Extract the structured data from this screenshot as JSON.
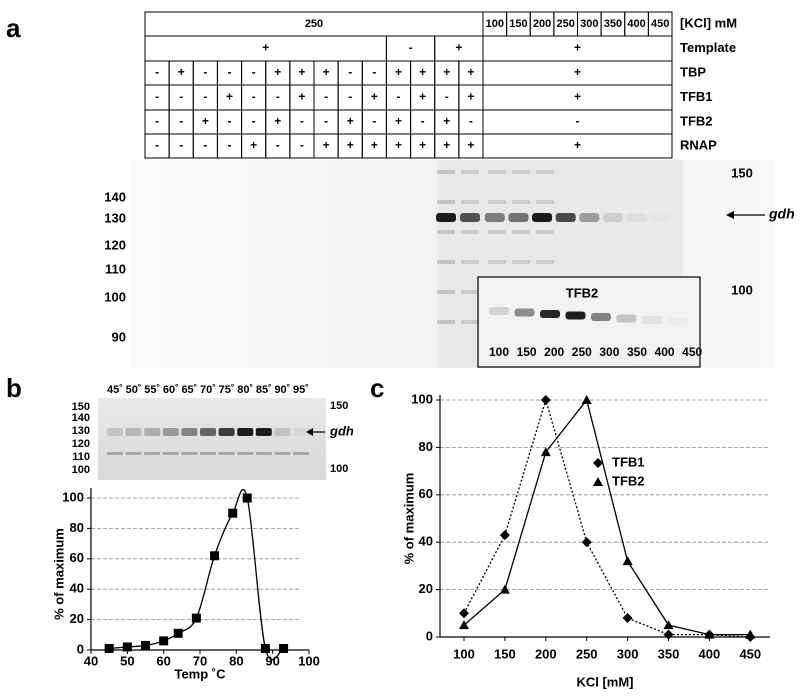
{
  "panel_labels": [
    "a",
    "b",
    "c"
  ],
  "table": {
    "kcl_left": "250",
    "kcl_values": [
      "100",
      "150",
      "200",
      "250",
      "300",
      "350",
      "400",
      "450"
    ],
    "row_labels": [
      "[KCl] mM",
      "Template",
      "TBP",
      "TFB1",
      "TFB2",
      "RNAP"
    ],
    "template": [
      "+",
      "-",
      "+",
      "+"
    ],
    "rows": [
      {
        "left": [
          "-",
          "+",
          "-",
          "-",
          "-",
          "+",
          "+",
          "+",
          "-",
          "-",
          "+",
          "+",
          "+",
          "+"
        ],
        "right": "+"
      },
      {
        "left": [
          "-",
          "-",
          "-",
          "+",
          "-",
          "-",
          "+",
          "-",
          "-",
          "+",
          "-",
          "+",
          "-",
          "+"
        ],
        "right": "+"
      },
      {
        "left": [
          "-",
          "-",
          "+",
          "-",
          "-",
          "+",
          "-",
          "-",
          "+",
          "-",
          "+",
          "-",
          "+",
          "-"
        ],
        "right": "-"
      },
      {
        "left": [
          "-",
          "-",
          "-",
          "-",
          "+",
          "-",
          "-",
          "+",
          "+",
          "+",
          "+",
          "+",
          "+",
          "+"
        ],
        "right": "+"
      }
    ]
  },
  "gel_a": {
    "left_markers": [
      "140",
      "130",
      "120",
      "110",
      "100",
      "90"
    ],
    "right_markers": [
      "150",
      "100"
    ],
    "band_label": "gdh",
    "inset_title": "TFB2",
    "inset_lanes": [
      "100",
      "150",
      "200",
      "250",
      "300",
      "350",
      "400",
      "450"
    ]
  },
  "gel_b": {
    "temperatures": [
      "45˚",
      "50˚",
      "55˚",
      "60˚",
      "65˚",
      "70˚",
      "75˚",
      "80˚",
      "85˚",
      "90˚",
      "95˚"
    ],
    "left_markers": [
      "150",
      "140",
      "130",
      "120",
      "110",
      "100"
    ],
    "right_markers": [
      "150",
      "100"
    ],
    "band_label": "gdh"
  },
  "chart_data": [
    {
      "type": "line",
      "x": [
        45,
        50,
        55,
        60,
        64,
        69,
        74,
        79,
        83,
        88,
        93
      ],
      "series": [
        {
          "color": "#000000",
          "marker": "square",
          "values": [
            1,
            2,
            3,
            6,
            11,
            21,
            62,
            90,
            100,
            1,
            1
          ]
        }
      ],
      "xlim": [
        40,
        100
      ],
      "ylim": [
        0,
        100
      ],
      "xticks": [
        40,
        50,
        60,
        70,
        80,
        90,
        100
      ],
      "yticks": [
        0,
        20,
        40,
        60,
        80,
        100
      ],
      "xlabel": "Temp ˚C",
      "ylabel": "% of maximum",
      "grid": true
    },
    {
      "type": "line",
      "categories": [
        "100",
        "150",
        "200",
        "250",
        "300",
        "350",
        "400",
        "450"
      ],
      "series": [
        {
          "name": "TFB1",
          "color": "#000000",
          "marker": "diamond",
          "dash": "dotted",
          "values": [
            10,
            43,
            100,
            40,
            8,
            1,
            1,
            0
          ]
        },
        {
          "name": "TFB2",
          "color": "#000000",
          "marker": "triangle",
          "dash": "solid",
          "values": [
            5,
            20,
            78,
            100,
            32,
            5,
            1,
            1
          ]
        }
      ],
      "ylim": [
        0,
        100
      ],
      "yticks": [
        0,
        20,
        40,
        60,
        80,
        100
      ],
      "xlabel": "KCl [mM]",
      "ylabel": "% of maximum",
      "grid": true,
      "legend": "right"
    }
  ]
}
